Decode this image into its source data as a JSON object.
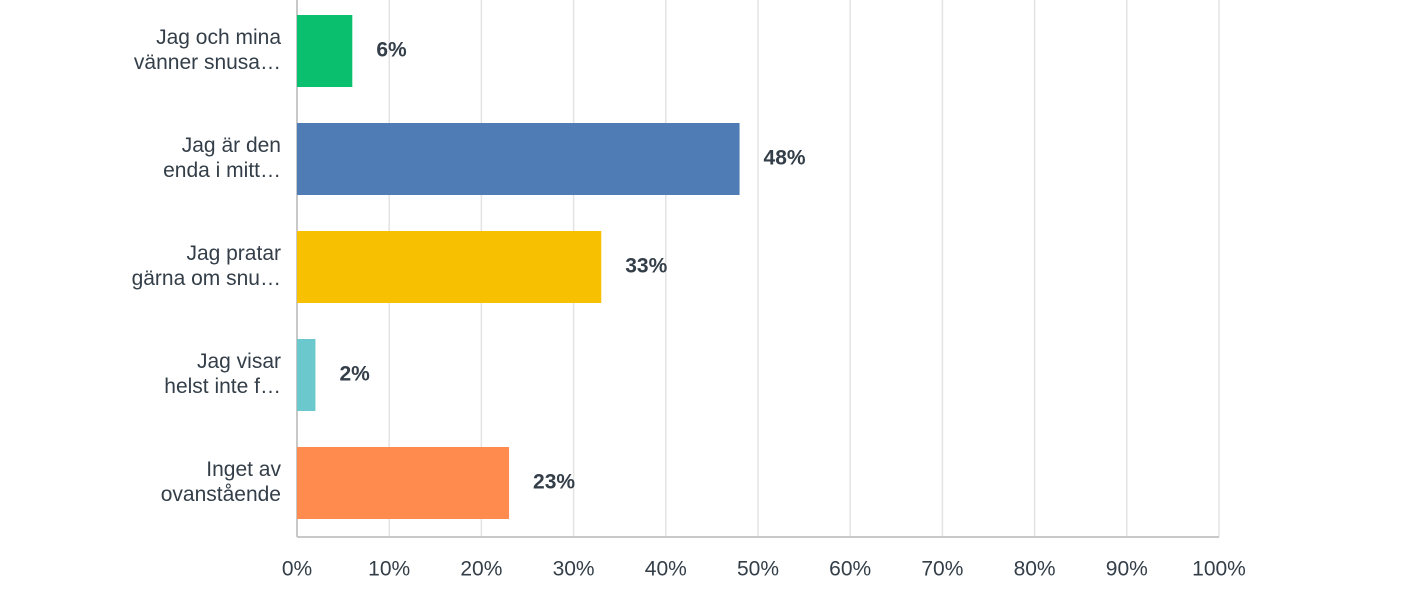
{
  "chart_data": {
    "type": "bar",
    "orientation": "horizontal",
    "categories": [
      [
        "Jag och mina",
        "vänner snusa…"
      ],
      [
        "Jag är den",
        "enda i mitt…"
      ],
      [
        "Jag pratar",
        "gärna om snu…"
      ],
      [
        "Jag visar",
        "helst inte f…"
      ],
      [
        "Inget av",
        "ovanstående"
      ]
    ],
    "values": [
      6,
      48,
      33,
      2,
      23
    ],
    "value_labels": [
      "6%",
      "48%",
      "33%",
      "2%",
      "23%"
    ],
    "colors": [
      "#0abf6e",
      "#507cb6",
      "#f7c000",
      "#6bc8cd",
      "#ff8b4f"
    ],
    "xlim": [
      0,
      100
    ],
    "xticks": [
      {
        "value": 0,
        "label": "0%"
      },
      {
        "value": 10,
        "label": "10%"
      },
      {
        "value": 20,
        "label": "20%"
      },
      {
        "value": 30,
        "label": "30%"
      },
      {
        "value": 40,
        "label": "40%"
      },
      {
        "value": 50,
        "label": "50%"
      },
      {
        "value": 60,
        "label": "60%"
      },
      {
        "value": 70,
        "label": "70%"
      },
      {
        "value": 80,
        "label": "80%"
      },
      {
        "value": 90,
        "label": "90%"
      },
      {
        "value": 100,
        "label": "100%"
      }
    ],
    "grid": true
  }
}
